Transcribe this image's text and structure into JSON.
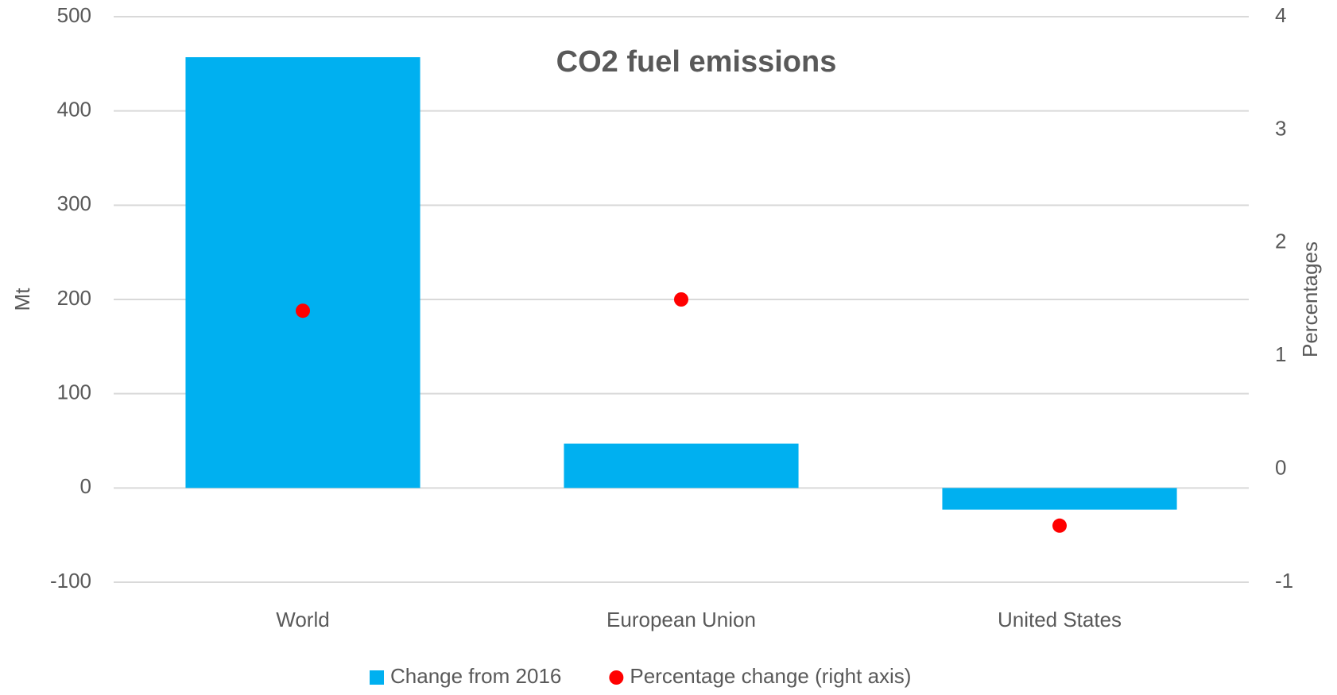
{
  "chart_data": {
    "type": "bar",
    "title": "CO2 fuel emissions",
    "categories": [
      "World",
      "European Union",
      "United States"
    ],
    "series": [
      {
        "name": "Change from 2016",
        "type": "bar",
        "color": "#00b0f0",
        "values": [
          457,
          47,
          -23
        ]
      },
      {
        "name": "Percentage change (right axis)",
        "type": "scatter",
        "axis": "y2",
        "color": "#ff0000",
        "values": [
          1.4,
          1.5,
          -0.5
        ]
      }
    ],
    "y_label": "Mt",
    "y2_label": "Percentages",
    "ylim": [
      -100,
      500
    ],
    "yticks": [
      -100,
      0,
      100,
      200,
      300,
      400,
      500
    ],
    "y2lim": [
      -1,
      4
    ],
    "y2ticks": [
      -1,
      0,
      1,
      2,
      3,
      4
    ],
    "grid": true,
    "legend": "bottom"
  }
}
